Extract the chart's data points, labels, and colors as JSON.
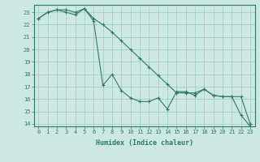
{
  "title": "",
  "xlabel": "Humidex (Indice chaleur)",
  "bg_color": "#cce8e0",
  "grid_color": "#99ccbb",
  "line_color": "#2d7a6a",
  "xlim": [
    -0.5,
    23.5
  ],
  "ylim": [
    13.8,
    23.6
  ],
  "yticks": [
    14,
    15,
    16,
    17,
    18,
    19,
    20,
    21,
    22,
    23
  ],
  "xticks": [
    0,
    1,
    2,
    3,
    4,
    5,
    6,
    7,
    8,
    9,
    10,
    11,
    12,
    13,
    14,
    15,
    16,
    17,
    18,
    19,
    20,
    21,
    22,
    23
  ],
  "series1_x": [
    0,
    1,
    2,
    3,
    4,
    5,
    6,
    7,
    8,
    9,
    10,
    11,
    12,
    13,
    14,
    15,
    16,
    17,
    18,
    19,
    20,
    21,
    22,
    23
  ],
  "series1_y": [
    22.5,
    23.0,
    23.2,
    23.2,
    23.0,
    23.3,
    22.5,
    22.0,
    21.4,
    20.7,
    20.0,
    19.3,
    18.6,
    17.9,
    17.2,
    16.5,
    16.5,
    16.5,
    16.8,
    16.3,
    16.2,
    16.2,
    16.2,
    14.0
  ],
  "series2_x": [
    0,
    1,
    2,
    3,
    4,
    5,
    6,
    7,
    8,
    9,
    10,
    11,
    12,
    13,
    14,
    15,
    16,
    17,
    18,
    19,
    20,
    21,
    22,
    23
  ],
  "series2_y": [
    22.5,
    23.0,
    23.2,
    23.0,
    22.8,
    23.3,
    22.3,
    17.1,
    18.0,
    16.7,
    16.1,
    15.8,
    15.8,
    16.1,
    15.2,
    16.6,
    16.6,
    16.3,
    16.8,
    16.3,
    16.2,
    16.2,
    14.7,
    13.8
  ],
  "xlabel_fontsize": 6,
  "tick_fontsize": 5
}
